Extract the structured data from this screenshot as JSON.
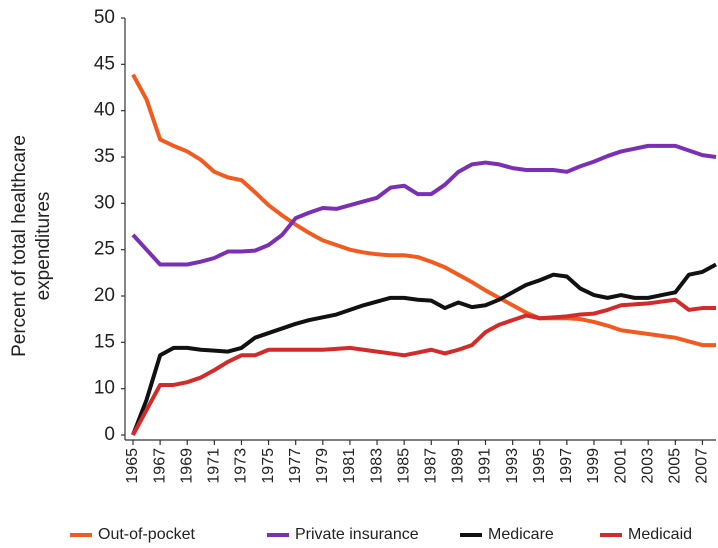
{
  "chart_data": {
    "type": "line",
    "y_label": [
      "Percent of total healthcare",
      "expenditures"
    ],
    "x": [
      1965,
      1966,
      1967,
      1968,
      1969,
      1970,
      1971,
      1972,
      1973,
      1974,
      1975,
      1976,
      1977,
      1978,
      1979,
      1980,
      1981,
      1982,
      1983,
      1984,
      1985,
      1986,
      1987,
      1988,
      1989,
      1990,
      1991,
      1992,
      1993,
      1994,
      1995,
      1996,
      1997,
      1998,
      1999,
      2000,
      2001,
      2002,
      2003,
      2004,
      2005,
      2006,
      2007,
      2008
    ],
    "xlim": [
      1965,
      2008
    ],
    "xticks": [
      1965,
      1967,
      1969,
      1971,
      1973,
      1975,
      1977,
      1979,
      1981,
      1983,
      1985,
      1987,
      1989,
      1991,
      1993,
      1995,
      1997,
      1999,
      2001,
      2003,
      2005,
      2007
    ],
    "ylim": [
      0,
      50
    ],
    "yticks": [
      0,
      10,
      15,
      20,
      25,
      30,
      35,
      40,
      45,
      50
    ],
    "grid": false,
    "legend": "bottom",
    "series": [
      {
        "name": "Out-of-pocket",
        "color": "#f25a1e",
        "values": [
          43.9,
          41.2,
          36.9,
          36.2,
          35.6,
          34.7,
          33.4,
          32.8,
          32.5,
          31.2,
          29.8,
          28.7,
          27.7,
          26.8,
          26,
          25.5,
          25,
          24.7,
          24.5,
          24.4,
          24.4,
          24.2,
          23.7,
          23.1,
          22.3,
          21.5,
          20.6,
          19.8,
          19,
          18.2,
          17.6,
          17.6,
          17.6,
          17.5,
          17.2,
          16.8,
          16.3,
          16.1,
          15.9,
          15.7,
          15.5,
          15.1,
          14.7,
          14.7
        ]
      },
      {
        "name": "Private insurance",
        "color": "#7a2fb5",
        "values": [
          26.6,
          25,
          23.4,
          23.4,
          23.4,
          23.7,
          24.1,
          24.8,
          24.8,
          24.9,
          25.5,
          26.6,
          28.4,
          29,
          29.5,
          29.4,
          29.8,
          30.2,
          30.6,
          31.7,
          31.9,
          31,
          31,
          32,
          33.4,
          34.2,
          34.4,
          34.2,
          33.8,
          33.6,
          33.6,
          33.6,
          33.4,
          34,
          34.5,
          35.1,
          35.6,
          35.9,
          36.2,
          36.2,
          36.2,
          35.7,
          35.2,
          35
        ]
      },
      {
        "name": "Medicare",
        "color": "#111111",
        "values": [
          0,
          7.6,
          13.6,
          14.4,
          14.4,
          14.2,
          14.1,
          14,
          14.4,
          15.5,
          16,
          16.5,
          17,
          17.4,
          17.7,
          18,
          18.5,
          19,
          19.4,
          19.8,
          19.8,
          19.6,
          19.5,
          18.7,
          19.3,
          18.8,
          19,
          19.6,
          20.4,
          21.2,
          21.7,
          22.3,
          22.1,
          20.8,
          20.1,
          19.8,
          20.1,
          19.8,
          19.8,
          20.1,
          20.4,
          22.3,
          22.6,
          23.4
        ]
      },
      {
        "name": "Medicaid",
        "color": "#d42a2a",
        "values": [
          0,
          5.4,
          10.4,
          10.4,
          10.7,
          11.2,
          12,
          12.9,
          13.6,
          13.6,
          14.2,
          14.2,
          14.2,
          14.2,
          14.2,
          14.3,
          14.4,
          14.2,
          14,
          13.8,
          13.6,
          13.9,
          14.2,
          13.8,
          14.2,
          14.7,
          16.1,
          16.9,
          17.4,
          17.9,
          17.6,
          17.7,
          17.8,
          18,
          18.1,
          18.5,
          19,
          19.1,
          19.2,
          19.4,
          19.6,
          18.5,
          18.7,
          18.7
        ]
      }
    ]
  }
}
